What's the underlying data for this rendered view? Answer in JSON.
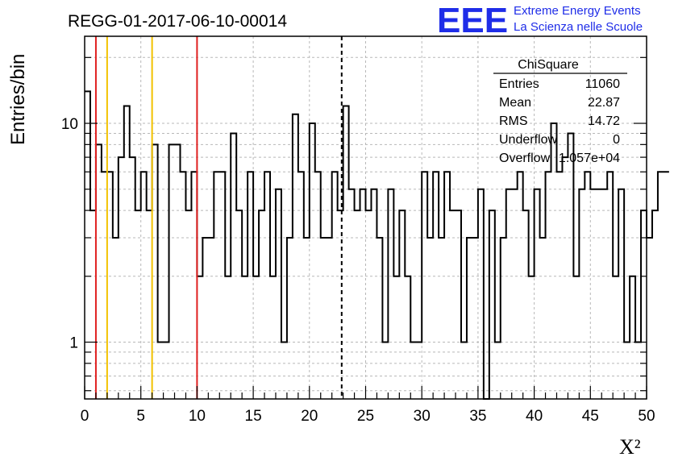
{
  "chart_data": {
    "type": "histogram",
    "title": "REGG-01-2017-06-10-00014",
    "xlabel": "X²",
    "ylabel": "Entries/bin",
    "xlim": [
      0,
      50
    ],
    "ylim": [
      0.55,
      25
    ],
    "yscale": "log",
    "grid": true,
    "bin_width": 0.5,
    "bin_edges_start": 0,
    "values": [
      14,
      4,
      8,
      6,
      6,
      3,
      7,
      12,
      7,
      4,
      6,
      4,
      8,
      1,
      1,
      8,
      8,
      6,
      4,
      6,
      2,
      3,
      3,
      6,
      6,
      2,
      9,
      4,
      2,
      6,
      2,
      4,
      6,
      2,
      5,
      1,
      3,
      11,
      6,
      3,
      10,
      6,
      3,
      3,
      6,
      4,
      12,
      5,
      4,
      5,
      4,
      5,
      3,
      1,
      5,
      2,
      4,
      2,
      1,
      1,
      6,
      3,
      6,
      3,
      6,
      4,
      4,
      1,
      3,
      3,
      5,
      0,
      4,
      1,
      3,
      5,
      5,
      6,
      4,
      2,
      5,
      3,
      6,
      10,
      6,
      7,
      9,
      2,
      5,
      6,
      5,
      5,
      5,
      6,
      2,
      5,
      1,
      2,
      1,
      4,
      3,
      4,
      6,
      6
    ],
    "y_ticks": [
      1,
      10
    ],
    "x_ticks": [
      0,
      5,
      10,
      15,
      20,
      25,
      30,
      35,
      40,
      45,
      50
    ],
    "x_tick_labels": [
      "0",
      "5",
      "10",
      "15",
      "20",
      "25",
      "30",
      "35",
      "40",
      "45",
      "50"
    ],
    "y_tick_labels": [
      "1",
      "10"
    ],
    "vertical_lines": [
      {
        "x": 1,
        "color": "#e02020",
        "style": "solid"
      },
      {
        "x": 2,
        "color": "#f2c200",
        "style": "solid"
      },
      {
        "x": 6,
        "color": "#f2c200",
        "style": "solid"
      },
      {
        "x": 10,
        "color": "#e02020",
        "style": "solid"
      },
      {
        "x": 22.87,
        "color": "#000000",
        "style": "dashed"
      }
    ],
    "stats": {
      "name": "ChiSquare",
      "rows": [
        {
          "label": "Entries",
          "value": "11060"
        },
        {
          "label": "Mean",
          "value": "22.87"
        },
        {
          "label": "RMS",
          "value": "14.72"
        },
        {
          "label": "Underflow",
          "value": "0"
        },
        {
          "label": "Overflow",
          "value": "1.057e+04"
        }
      ]
    }
  },
  "logo": {
    "mark": "EEE",
    "line1": "Extreme Energy Events",
    "line2": "La Scienza nelle Scuole",
    "color": "#1f2de8"
  }
}
